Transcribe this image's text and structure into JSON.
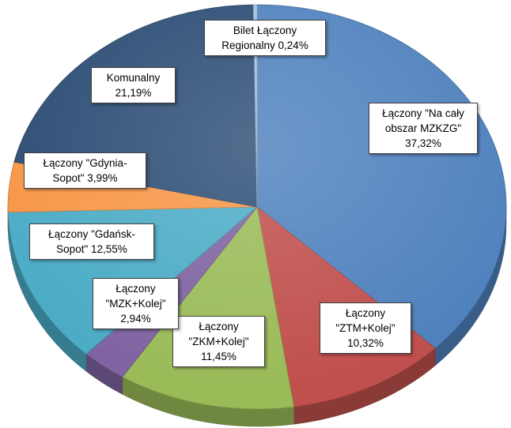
{
  "chart_data": {
    "type": "pie3d",
    "categories": [
      "Łączony \"Na cały obszar MZKZG\"",
      "Łączony \"ZTM+Kolej\"",
      "Łączony \"ZKM+Kolej\"",
      "Łączony \"MZK+Kolej\"",
      "Łączony \"Gdańsk-Sopot\"",
      "Łączony \"Gdynia-Sopot\"",
      "Komunalny",
      "Bilet Łączony Regionalny"
    ],
    "values": [
      37.32,
      10.32,
      11.45,
      2.94,
      12.55,
      3.99,
      21.19,
      0.24
    ],
    "value_labels": [
      "37,32%",
      "10,32%",
      "11,45%",
      "2,94%",
      "12,55%",
      "3,99%",
      "21,19%",
      "0,24%"
    ],
    "colors": [
      "#4f81bd",
      "#c0504d",
      "#9bbb59",
      "#8064a2",
      "#4bacc6",
      "#f79646",
      "#2c4d75",
      "#a5c0e0"
    ]
  }
}
